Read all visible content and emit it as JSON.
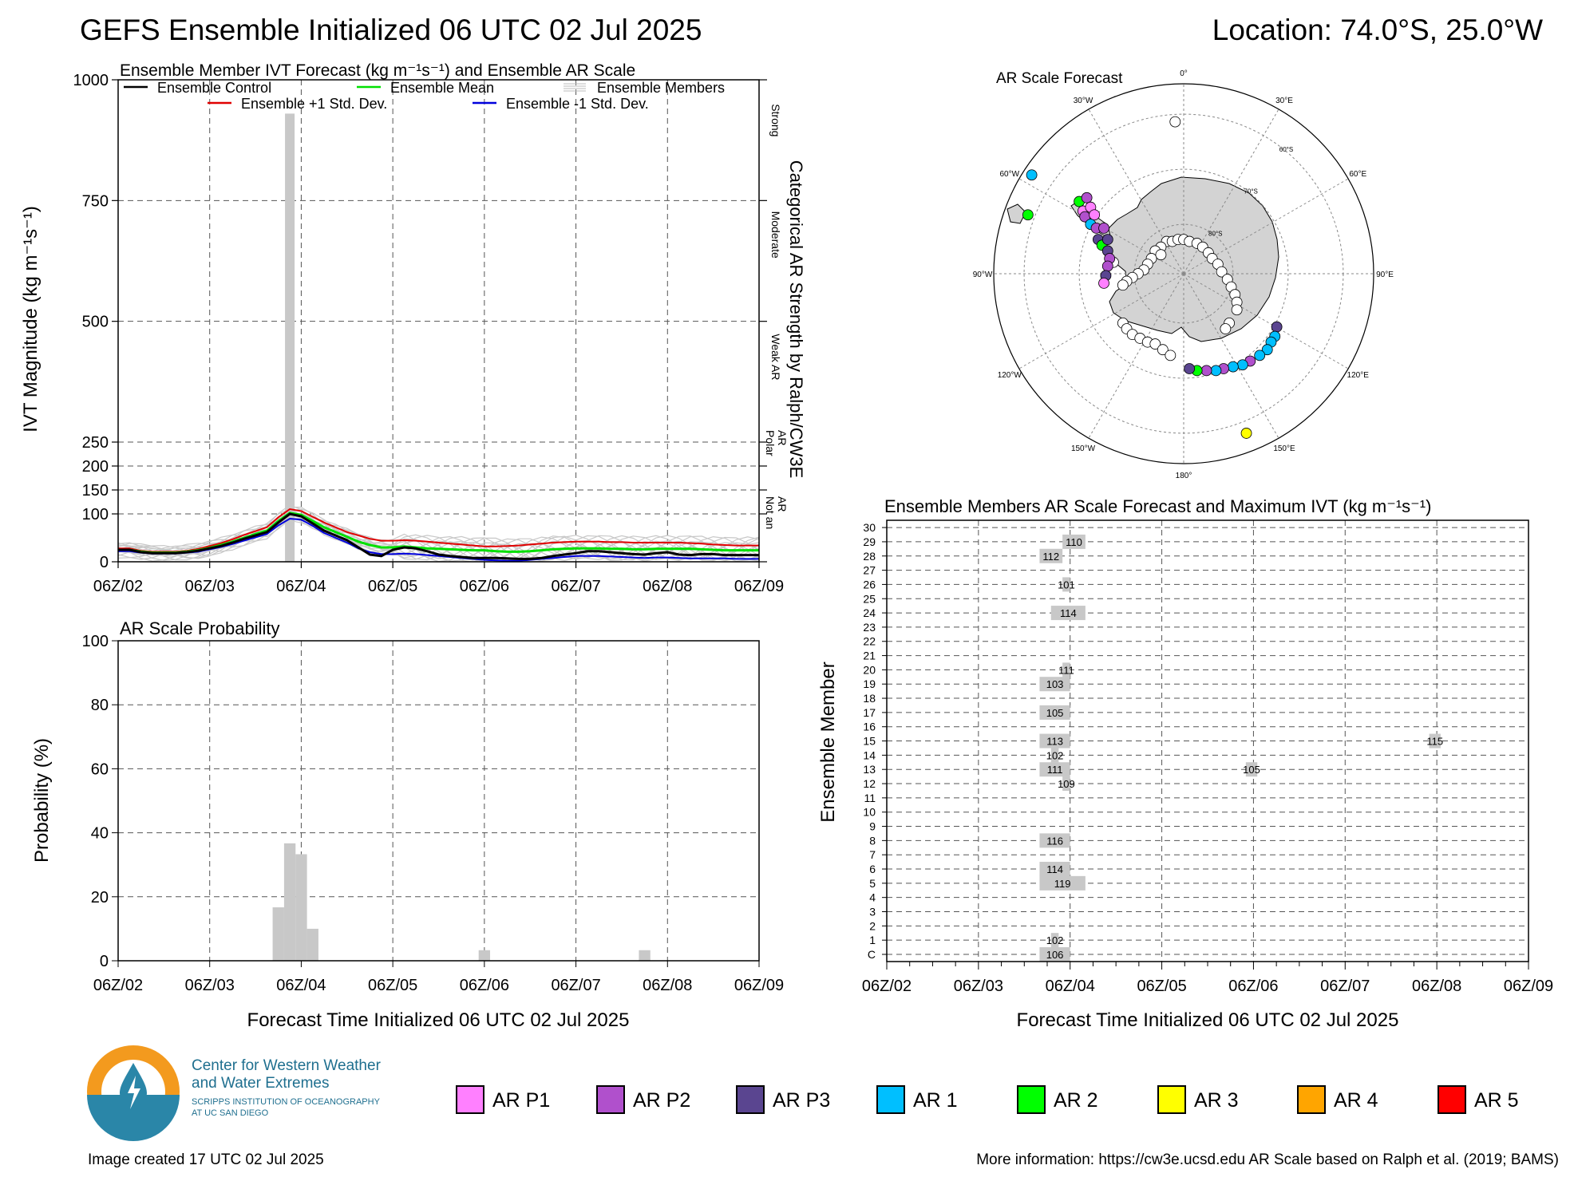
{
  "header": {
    "title": "GEFS Ensemble Initialized 06 UTC 02 Jul 2025",
    "location": "Location: 74.0°S, 25.0°W"
  },
  "footer": {
    "created": "Image created 17 UTC 02 Jul 2025",
    "more_info": "More information: https://cw3e.ucsd.edu AR Scale based on Ralph et al. (2019; BAMS)"
  },
  "logo": {
    "line1": "Center for Western Weather",
    "line2": "and Water Extremes",
    "line3": "SCRIPPS INSTITUTION OF OCEANOGRAPHY",
    "line4": "AT UC SAN DIEGO"
  },
  "legend_ar": [
    {
      "label": "AR P1",
      "color": "#ff80ff"
    },
    {
      "label": "AR P2",
      "color": "#b050cc"
    },
    {
      "label": "AR P3",
      "color": "#5a4590"
    },
    {
      "label": "AR 1",
      "color": "#00bfff"
    },
    {
      "label": "AR 2",
      "color": "#00ff00"
    },
    {
      "label": "AR 3",
      "color": "#ffff00"
    },
    {
      "label": "AR 4",
      "color": "#ffa500"
    },
    {
      "label": "AR 5",
      "color": "#ff0000"
    }
  ],
  "chart_data": [
    {
      "id": "ivt",
      "type": "line",
      "title": "Ensemble Member IVT Forecast (kg m⁻¹s⁻¹) and Ensemble AR Scale",
      "ylabel": "IVT Magnitude (kg m⁻¹s⁻¹)",
      "right_label": "Categorical AR Strength by Ralph/CW3E",
      "categories_right": [
        "Strong",
        "Moderate",
        "Weak AR",
        "Polar AR",
        "Not an AR"
      ],
      "x_ticks": [
        "06Z/02",
        "06Z/03",
        "06Z/04",
        "06Z/05",
        "06Z/06",
        "06Z/07",
        "06Z/08",
        "06Z/09"
      ],
      "xlim": [
        0,
        168
      ],
      "y_ticks": [
        0,
        100,
        150,
        200,
        250,
        500,
        750,
        1000
      ],
      "legend": [
        {
          "label": "Ensemble Control",
          "color": "#000000"
        },
        {
          "label": "Ensemble Mean",
          "color": "#00e000"
        },
        {
          "label": "Ensemble Members",
          "color": "#bbbbbb"
        },
        {
          "label": "Ensemble +1 Std. Dev.",
          "color": "#e00000"
        },
        {
          "label": "Ensemble -1 Std. Dev.",
          "color": "#0000dd"
        }
      ],
      "highlight_bar": {
        "x": 45,
        "ymax": 930
      },
      "x": [
        0,
        3,
        6,
        9,
        12,
        15,
        18,
        21,
        24,
        27,
        30,
        33,
        36,
        39,
        42,
        45,
        48,
        51,
        54,
        57,
        60,
        63,
        66,
        69,
        72,
        75,
        78,
        81,
        84,
        87,
        90,
        93,
        96,
        99,
        102,
        105,
        108,
        111,
        114,
        117,
        120,
        123,
        126,
        129,
        132,
        135,
        138,
        141,
        144,
        147,
        150,
        153,
        156,
        159,
        162,
        165,
        168
      ],
      "series": [
        {
          "name": "Ensemble Control",
          "color": "#000000",
          "values": [
            25,
            25,
            20,
            18,
            18,
            18,
            20,
            23,
            28,
            33,
            40,
            48,
            55,
            62,
            82,
            100,
            95,
            80,
            65,
            55,
            45,
            30,
            15,
            12,
            25,
            30,
            28,
            22,
            15,
            12,
            10,
            8,
            8,
            8,
            7,
            6,
            6,
            8,
            12,
            15,
            18,
            22,
            22,
            20,
            18,
            16,
            15,
            18,
            20,
            15,
            14,
            16,
            16,
            14,
            14,
            14,
            14
          ]
        },
        {
          "name": "Ensemble Mean",
          "color": "#00e000",
          "values": [
            25,
            25,
            21,
            19,
            19,
            19,
            21,
            24,
            29,
            35,
            42,
            50,
            58,
            65,
            85,
            102,
            98,
            85,
            72,
            62,
            52,
            42,
            35,
            30,
            30,
            32,
            30,
            28,
            27,
            26,
            25,
            24,
            24,
            22,
            21,
            21,
            22,
            24,
            26,
            27,
            28,
            28,
            28,
            27,
            27,
            26,
            26,
            27,
            27,
            27,
            27,
            26,
            25,
            24,
            24,
            24,
            24
          ]
        },
        {
          "name": "Ensemble +1 Std. Dev.",
          "color": "#e00000",
          "values": [
            28,
            28,
            23,
            21,
            21,
            21,
            23,
            27,
            33,
            39,
            47,
            56,
            64,
            72,
            93,
            110,
            106,
            94,
            82,
            72,
            62,
            55,
            48,
            44,
            44,
            45,
            44,
            42,
            40,
            38,
            36,
            34,
            32,
            32,
            33,
            34,
            36,
            38,
            40,
            41,
            42,
            42,
            42,
            41,
            41,
            40,
            40,
            40,
            40,
            40,
            39,
            38,
            36,
            35,
            34,
            34,
            34
          ]
        },
        {
          "name": "Ensemble -1 Std. Dev.",
          "color": "#0000dd",
          "values": [
            22,
            22,
            19,
            17,
            17,
            17,
            19,
            21,
            26,
            31,
            37,
            44,
            51,
            58,
            76,
            90,
            88,
            75,
            60,
            50,
            40,
            28,
            20,
            16,
            16,
            17,
            16,
            14,
            12,
            10,
            8,
            6,
            4,
            3,
            2,
            2,
            4,
            6,
            8,
            10,
            12,
            12,
            12,
            11,
            10,
            9,
            8,
            9,
            9,
            8,
            7,
            7,
            7,
            7,
            6,
            6,
            6
          ]
        }
      ]
    },
    {
      "id": "prob",
      "type": "bar",
      "title": "AR Scale Probability",
      "ylabel": "Probability (%)",
      "xlabel": "Forecast Time Initialized 06 UTC 02 Jul 2025",
      "x_ticks": [
        "06Z/02",
        "06Z/03",
        "06Z/04",
        "06Z/05",
        "06Z/06",
        "06Z/07",
        "06Z/08",
        "06Z/09"
      ],
      "xlim": [
        0,
        168
      ],
      "ylim": [
        0,
        100
      ],
      "y_ticks": [
        0,
        20,
        40,
        60,
        80,
        100
      ],
      "bar_width_hours": 3,
      "x": [
        42,
        45,
        48,
        51,
        96,
        138
      ],
      "values": [
        16.7,
        36.7,
        33.3,
        10,
        3.3,
        3.3
      ]
    },
    {
      "id": "members",
      "type": "table",
      "title": "Ensemble Members AR Scale Forecast and Maximum IVT (kg m⁻¹s⁻¹)",
      "ylabel": "Ensemble Member",
      "xlabel": "Forecast Time Initialized 06 UTC 02 Jul 2025",
      "x_ticks": [
        "06Z/02",
        "06Z/03",
        "06Z/04",
        "06Z/05",
        "06Z/06",
        "06Z/07",
        "06Z/08",
        "06Z/09"
      ],
      "xlim": [
        0,
        168
      ],
      "rows": [
        "C",
        "1",
        "2",
        "3",
        "4",
        "5",
        "6",
        "7",
        "8",
        "9",
        "10",
        "11",
        "12",
        "13",
        "14",
        "15",
        "16",
        "17",
        "18",
        "19",
        "20",
        "21",
        "22",
        "23",
        "24",
        "25",
        "26",
        "27",
        "28",
        "29",
        "30"
      ],
      "cells": [
        {
          "row": "C",
          "x0": 40,
          "x1": 48,
          "ivt": "106"
        },
        {
          "row": "1",
          "x0": 43,
          "x1": 45,
          "ivt": "102"
        },
        {
          "row": "5",
          "x0": 40,
          "x1": 52,
          "ivt": "119"
        },
        {
          "row": "6",
          "x0": 40,
          "x1": 48,
          "ivt": "114"
        },
        {
          "row": "8",
          "x0": 40,
          "x1": 48,
          "ivt": "116"
        },
        {
          "row": "12",
          "x0": 46,
          "x1": 48,
          "ivt": "109"
        },
        {
          "row": "13",
          "x0": 40,
          "x1": 48,
          "ivt": "111"
        },
        {
          "row": "13",
          "x0": 94,
          "x1": 97,
          "ivt": "105"
        },
        {
          "row": "14",
          "x0": 43,
          "x1": 45,
          "ivt": "102"
        },
        {
          "row": "15",
          "x0": 40,
          "x1": 48,
          "ivt": "113"
        },
        {
          "row": "15",
          "x0": 142,
          "x1": 145,
          "ivt": "115"
        },
        {
          "row": "17",
          "x0": 40,
          "x1": 48,
          "ivt": "105"
        },
        {
          "row": "19",
          "x0": 40,
          "x1": 48,
          "ivt": "103"
        },
        {
          "row": "20",
          "x0": 46,
          "x1": 48,
          "ivt": "111"
        },
        {
          "row": "24",
          "x0": 43,
          "x1": 52,
          "ivt": "114"
        },
        {
          "row": "26",
          "x0": 46,
          "x1": 48,
          "ivt": "101"
        },
        {
          "row": "28",
          "x0": 40,
          "x1": 46,
          "ivt": "112"
        },
        {
          "row": "29",
          "x0": 46,
          "x1": 52,
          "ivt": "110"
        }
      ]
    },
    {
      "id": "map",
      "type": "scatter",
      "title": "AR Scale Forecast",
      "lon_labels": [
        "0°",
        "30°E",
        "60°E",
        "90°E",
        "120°E",
        "150°E",
        "180°",
        "150°W",
        "120°W",
        "90°W",
        "60°W",
        "30°W"
      ],
      "lat_labels": [
        "60°S",
        "70°S",
        "80°S"
      ],
      "points": [
        {
          "x": -0.045,
          "y": 0.8,
          "color": "#ffffff"
        },
        {
          "x": -0.09,
          "y": 0.17,
          "color": "#ffffff"
        },
        {
          "x": -0.06,
          "y": 0.17,
          "color": "#ffffff"
        },
        {
          "x": -0.03,
          "y": 0.18,
          "color": "#ffffff"
        },
        {
          "x": 0.0,
          "y": 0.18,
          "color": "#ffffff"
        },
        {
          "x": 0.03,
          "y": 0.17,
          "color": "#ffffff"
        },
        {
          "x": 0.07,
          "y": 0.16,
          "color": "#ffffff"
        },
        {
          "x": 0.1,
          "y": 0.14,
          "color": "#ffffff"
        },
        {
          "x": 0.13,
          "y": 0.11,
          "color": "#ffffff"
        },
        {
          "x": 0.15,
          "y": 0.08,
          "color": "#ffffff"
        },
        {
          "x": 0.18,
          "y": 0.05,
          "color": "#ffffff"
        },
        {
          "x": 0.2,
          "y": 0.01,
          "color": "#ffffff"
        },
        {
          "x": 0.23,
          "y": -0.03,
          "color": "#ffffff"
        },
        {
          "x": 0.25,
          "y": -0.07,
          "color": "#ffffff"
        },
        {
          "x": 0.27,
          "y": -0.11,
          "color": "#ffffff"
        },
        {
          "x": 0.28,
          "y": -0.15,
          "color": "#ffffff"
        },
        {
          "x": 0.28,
          "y": -0.19,
          "color": "#ffffff"
        },
        {
          "x": -0.12,
          "y": 0.14,
          "color": "#ffffff"
        },
        {
          "x": -0.15,
          "y": 0.12,
          "color": "#ffffff"
        },
        {
          "x": -0.17,
          "y": 0.08,
          "color": "#ffffff"
        },
        {
          "x": -0.19,
          "y": 0.05,
          "color": "#ffffff"
        },
        {
          "x": -0.21,
          "y": 0.02,
          "color": "#ffffff"
        },
        {
          "x": -0.24,
          "y": 0.0,
          "color": "#ffffff"
        },
        {
          "x": -0.27,
          "y": -0.02,
          "color": "#ffffff"
        },
        {
          "x": -0.3,
          "y": -0.04,
          "color": "#ffffff"
        },
        {
          "x": -0.32,
          "y": -0.06,
          "color": "#ffffff"
        },
        {
          "x": -0.37,
          "y": 0.06,
          "color": "#ffffff"
        },
        {
          "x": -0.32,
          "y": -0.26,
          "color": "#ffffff"
        },
        {
          "x": -0.3,
          "y": -0.29,
          "color": "#ffffff"
        },
        {
          "x": -0.27,
          "y": -0.32,
          "color": "#ffffff"
        },
        {
          "x": -0.23,
          "y": -0.34,
          "color": "#ffffff"
        },
        {
          "x": -0.19,
          "y": -0.36,
          "color": "#ffffff"
        },
        {
          "x": -0.15,
          "y": -0.37,
          "color": "#ffffff"
        },
        {
          "x": -0.11,
          "y": -0.4,
          "color": "#ffffff"
        },
        {
          "x": -0.07,
          "y": -0.43,
          "color": "#ffffff"
        },
        {
          "x": 0.24,
          "y": -0.26,
          "color": "#ffffff"
        },
        {
          "x": 0.22,
          "y": -0.29,
          "color": "#ffffff"
        },
        {
          "x": -0.12,
          "y": 0.1,
          "color": "#ffffff"
        },
        {
          "x": -0.8,
          "y": 0.52,
          "color": "#00bfff"
        },
        {
          "x": -0.82,
          "y": 0.31,
          "color": "#00ff00"
        },
        {
          "x": -0.55,
          "y": 0.38,
          "color": "#00ff00"
        },
        {
          "x": -0.51,
          "y": 0.4,
          "color": "#b050cc"
        },
        {
          "x": -0.53,
          "y": 0.33,
          "color": "#ff80ff"
        },
        {
          "x": -0.49,
          "y": 0.35,
          "color": "#ff80ff"
        },
        {
          "x": -0.52,
          "y": 0.3,
          "color": "#b050cc"
        },
        {
          "x": -0.47,
          "y": 0.31,
          "color": "#ff80ff"
        },
        {
          "x": -0.49,
          "y": 0.26,
          "color": "#00bfff"
        },
        {
          "x": -0.46,
          "y": 0.24,
          "color": "#b050cc"
        },
        {
          "x": -0.42,
          "y": 0.24,
          "color": "#b050cc"
        },
        {
          "x": -0.45,
          "y": 0.18,
          "color": "#5a4590"
        },
        {
          "x": -0.43,
          "y": 0.15,
          "color": "#00ff00"
        },
        {
          "x": -0.4,
          "y": 0.18,
          "color": "#5a4590"
        },
        {
          "x": -0.4,
          "y": 0.12,
          "color": "#5a4590"
        },
        {
          "x": -0.39,
          "y": 0.08,
          "color": "#b050cc"
        },
        {
          "x": -0.4,
          "y": 0.04,
          "color": "#b050cc"
        },
        {
          "x": -0.41,
          "y": -0.01,
          "color": "#5a4590"
        },
        {
          "x": -0.42,
          "y": -0.05,
          "color": "#ff80ff"
        },
        {
          "x": 0.49,
          "y": -0.28,
          "color": "#5a4590"
        },
        {
          "x": 0.48,
          "y": -0.33,
          "color": "#00bfff"
        },
        {
          "x": 0.46,
          "y": -0.36,
          "color": "#00bfff"
        },
        {
          "x": 0.44,
          "y": -0.4,
          "color": "#00bfff"
        },
        {
          "x": 0.4,
          "y": -0.43,
          "color": "#00bfff"
        },
        {
          "x": 0.35,
          "y": -0.46,
          "color": "#b050cc"
        },
        {
          "x": 0.31,
          "y": -0.48,
          "color": "#00bfff"
        },
        {
          "x": 0.26,
          "y": -0.49,
          "color": "#00bfff"
        },
        {
          "x": 0.21,
          "y": -0.5,
          "color": "#b050cc"
        },
        {
          "x": 0.17,
          "y": -0.51,
          "color": "#00bfff"
        },
        {
          "x": 0.12,
          "y": -0.51,
          "color": "#b050cc"
        },
        {
          "x": 0.07,
          "y": -0.51,
          "color": "#00ff00"
        },
        {
          "x": 0.03,
          "y": -0.5,
          "color": "#5a4590"
        },
        {
          "x": 0.33,
          "y": -0.84,
          "color": "#ffff00"
        }
      ]
    }
  ]
}
